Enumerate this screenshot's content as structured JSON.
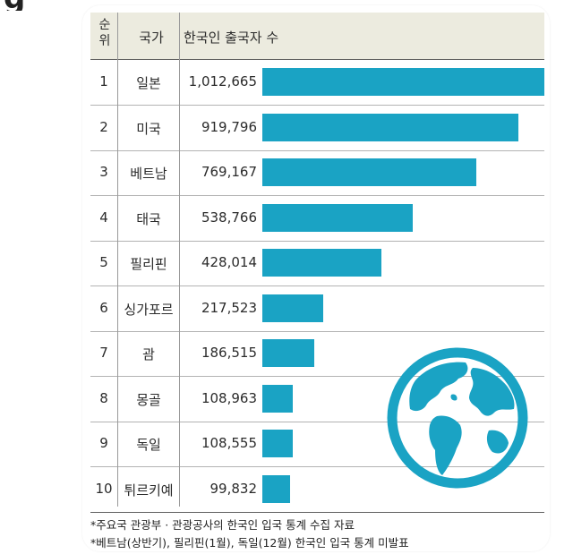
{
  "header": {
    "rank_line1": "순",
    "rank_line2": "위",
    "country": "국가",
    "count": "한국인 출국자 수"
  },
  "footnotes": [
    "*주요국 관광부 · 관광공사의 한국인 입국 통계 수집 자료",
    "*베트남(상반기), 필리핀(1월), 독일(12월) 한국인 입국 통계 미발표"
  ],
  "colors": {
    "bar": "#1aa3c4",
    "header_bg": "#ecebdf",
    "globe": "#1aa3c4"
  },
  "icons": {
    "globe": "globe-icon"
  },
  "chart_data": {
    "type": "bar",
    "orientation": "horizontal",
    "ranks": [
      "1",
      "2",
      "3",
      "4",
      "5",
      "6",
      "7",
      "8",
      "9",
      "10"
    ],
    "categories": [
      "일본",
      "미국",
      "베트남",
      "태국",
      "필리핀",
      "싱가포르",
      "괌",
      "몽골",
      "독일",
      "튀르키예"
    ],
    "values": [
      1012665,
      919796,
      769167,
      538766,
      428014,
      217523,
      186515,
      108963,
      108555,
      99832
    ],
    "value_labels": [
      "1,012,665",
      "919,796",
      "769,167",
      "538,766",
      "428,014",
      "217,523",
      "186,515",
      "108,963",
      "108,555",
      "99,832"
    ],
    "title": "",
    "xlabel": "",
    "ylabel": "",
    "grid": false,
    "legend": "none"
  }
}
